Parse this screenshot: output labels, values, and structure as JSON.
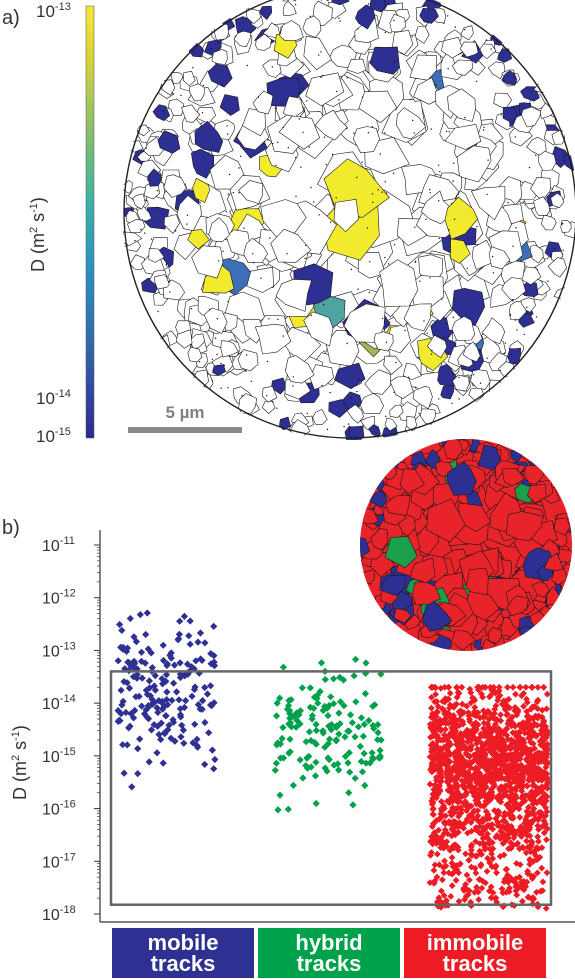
{
  "panel_a": {
    "label": "a)",
    "colorbar": {
      "top_label": "10-13",
      "mid_label": "10-14",
      "bottom_label": "10-15",
      "axis_label": "D (m² s-1)",
      "colors": [
        "#2d2b8f",
        "#2f5fa8",
        "#2a8fc4",
        "#3bb3a3",
        "#8cc06a",
        "#d9d33a",
        "#f6e834"
      ]
    },
    "scalebar_label": "5 µm",
    "cell_colors": {
      "white": "#ffffff",
      "blue": "#2d2f93",
      "mid_blue": "#3c6fb8",
      "yellow": "#f2ea2c",
      "orange": "#f5b52a",
      "olive": "#a7b35a",
      "teal": "#4fa3a0"
    }
  },
  "panel_b": {
    "label": "b)",
    "inset_colors": {
      "red": "#e8232a",
      "blue": "#2d2f93",
      "green": "#1aa04a"
    },
    "categories": [
      {
        "line1": "mobile",
        "line2": "tracks",
        "color": "#2e3192"
      },
      {
        "line1": "hybrid",
        "line2": "tracks",
        "color": "#00a14b"
      },
      {
        "line1": "immobile",
        "line2": "tracks",
        "color": "#ed1c24"
      }
    ]
  },
  "chart_data": {
    "type": "scatter",
    "title": "",
    "xlabel": "",
    "ylabel": "D (m² s-1)",
    "yscale": "log",
    "ylim": [
      1e-18,
      1e-11
    ],
    "yticks": [
      {
        "exp": "-11",
        "value": 1e-11
      },
      {
        "exp": "-12",
        "value": 1e-12
      },
      {
        "exp": "-13",
        "value": 1e-13
      },
      {
        "exp": "-14",
        "value": 1e-14
      },
      {
        "exp": "-15",
        "value": 1e-15
      },
      {
        "exp": "-16",
        "value": 1e-16
      },
      {
        "exp": "-17",
        "value": 1e-17
      },
      {
        "exp": "-18",
        "value": 1e-18
      }
    ],
    "tick_base": "10",
    "threshold_box": {
      "upper_D": 4e-14,
      "lower_D": 1.5e-18
    },
    "series": [
      {
        "name": "mobile tracks",
        "color": "#2e3192",
        "n_points": 190,
        "log10_D_range": [
          -16.0,
          -12.05
        ],
        "log10_D_center": -13.8
      },
      {
        "name": "hybrid tracks",
        "color": "#00a14b",
        "n_points": 150,
        "log10_D_range": [
          -16.5,
          -12.9
        ],
        "log10_D_center": -14.6
      },
      {
        "name": "immobile tracks",
        "color": "#ed1c24",
        "n_points": 1600,
        "log10_D_range": [
          -17.9,
          -13.7
        ],
        "log10_D_center": -15.1
      }
    ]
  }
}
